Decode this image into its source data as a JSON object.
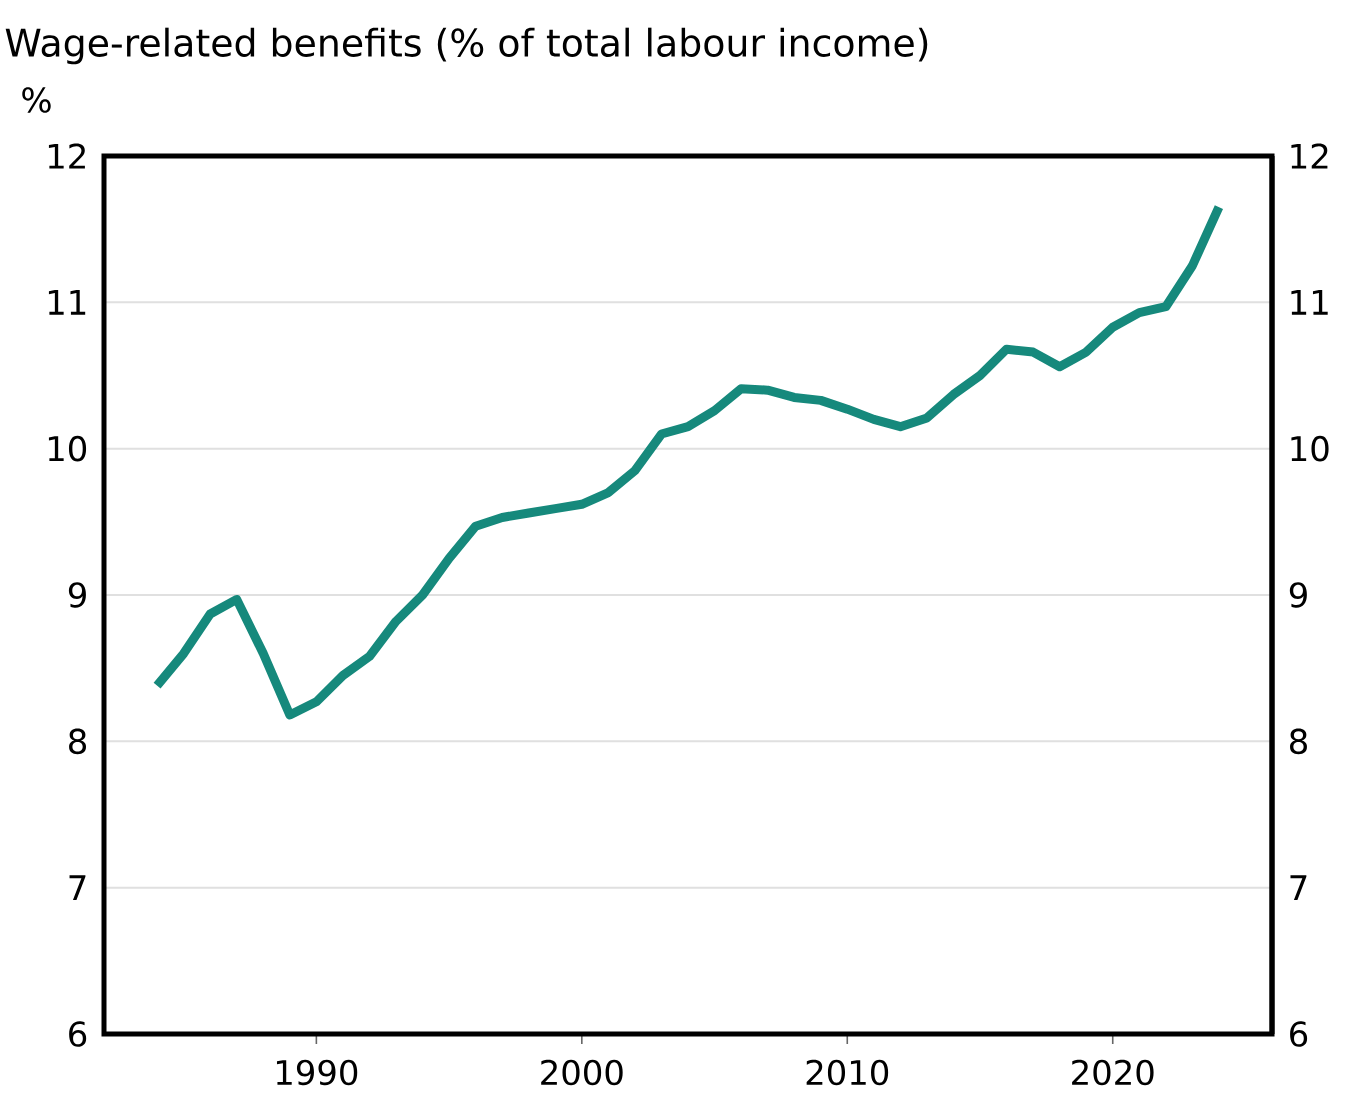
{
  "chart_data": {
    "type": "line",
    "title": "Wage-related benefits (% of total labour income)",
    "ylabel": "%",
    "x": [
      1984,
      1985,
      1986,
      1987,
      1988,
      1989,
      1990,
      1991,
      1992,
      1993,
      1994,
      1995,
      1996,
      1997,
      1998,
      1999,
      2000,
      2001,
      2002,
      2003,
      2004,
      2005,
      2006,
      2007,
      2008,
      2009,
      2010,
      2011,
      2012,
      2013,
      2014,
      2015,
      2016,
      2017,
      2018,
      2019,
      2020,
      2021,
      2022,
      2023,
      2024
    ],
    "series": [
      {
        "color": "#16897c",
        "values": [
          8.38,
          8.6,
          8.87,
          8.97,
          8.6,
          8.18,
          8.27,
          8.45,
          8.58,
          8.82,
          9.0,
          9.25,
          9.47,
          9.53,
          9.56,
          9.59,
          9.62,
          9.7,
          9.85,
          10.1,
          10.15,
          10.26,
          10.41,
          10.4,
          10.35,
          10.33,
          10.27,
          10.2,
          10.15,
          10.21,
          10.37,
          10.5,
          10.68,
          10.66,
          10.56,
          10.66,
          10.83,
          10.93,
          10.97,
          11.25,
          11.65
        ]
      }
    ],
    "xlim": [
      1982,
      2026
    ],
    "xticks": [
      1990,
      2000,
      2010,
      2020
    ],
    "ylim": [
      6,
      12
    ],
    "yticks": [
      6,
      7,
      8,
      9,
      10,
      11,
      12
    ],
    "y2lim": [
      6,
      12
    ],
    "y2ticks": [
      6,
      7,
      8,
      9,
      10,
      11,
      12
    ],
    "grid": "y",
    "marker": "none",
    "line_style": "solid"
  }
}
